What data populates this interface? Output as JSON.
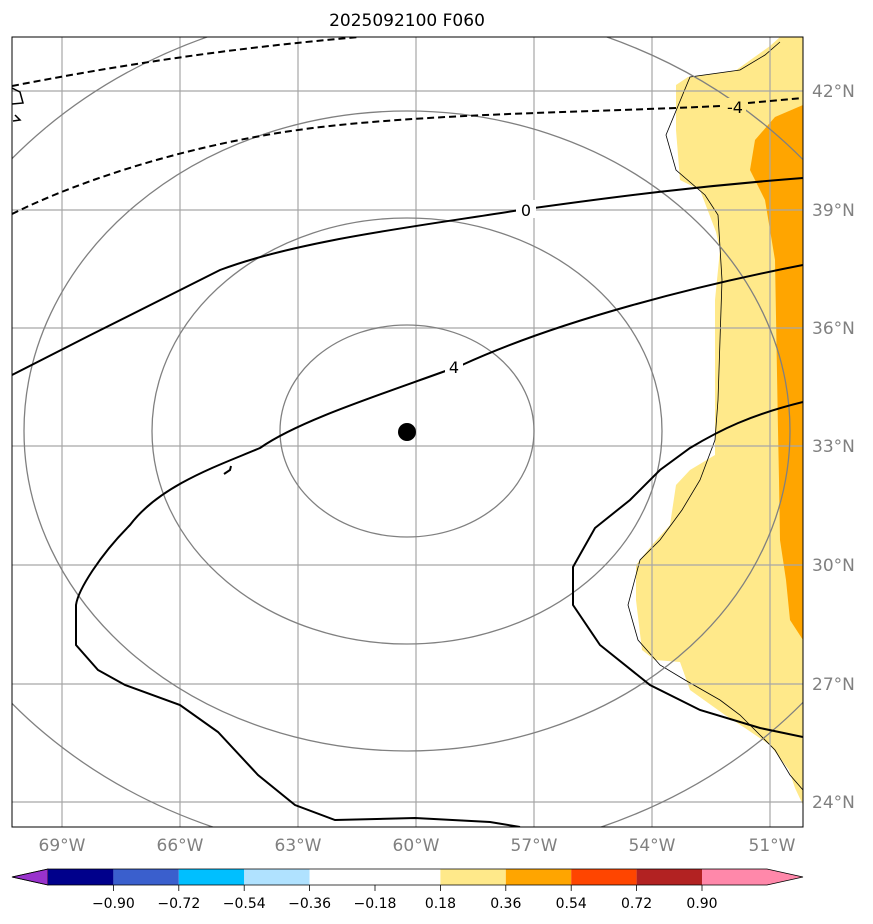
{
  "title": "2025092100 F060",
  "map": {
    "lon_labels": [
      "69°W",
      "66°W",
      "63°W",
      "60°W",
      "57°W",
      "54°W",
      "51°W"
    ],
    "lat_labels": [
      "42°N",
      "39°N",
      "36°N",
      "33°N",
      "30°N",
      "27°N",
      "24°N"
    ],
    "contour_labels": {
      "neg4": "-4",
      "zero": "0",
      "pos4": "4"
    },
    "center_marker": "storm-center"
  },
  "colorbar": {
    "tick_labels": [
      "−0.90",
      "−0.72",
      "−0.54",
      "−0.36",
      "−0.18",
      "0.18",
      "0.36",
      "0.54",
      "0.72",
      "0.90"
    ],
    "colors": {
      "under": "#9932cc",
      "c1": "#00008b",
      "c2": "#3a5fcd",
      "c3": "#00bfff",
      "c4": "#b0e2ff",
      "c5": "#ffffff",
      "c6": "#ffe98a",
      "c7": "#ffa500",
      "c8": "#ff4500",
      "c9": "#b22222",
      "over": "#ff88aa"
    }
  }
}
